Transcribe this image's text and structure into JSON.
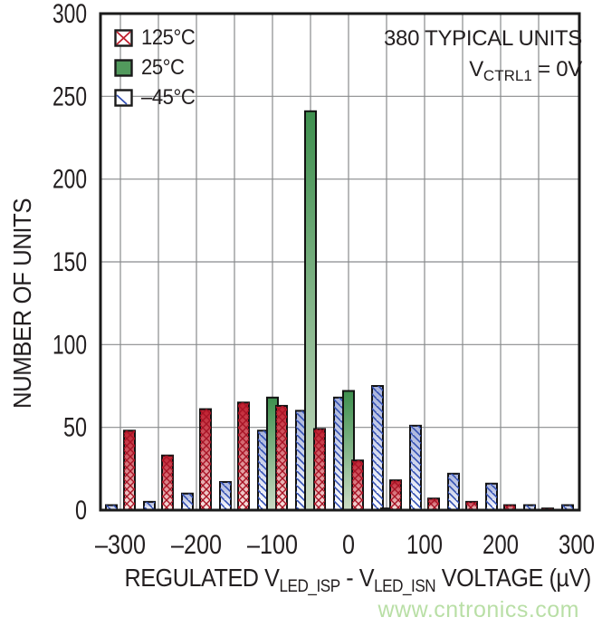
{
  "legend": {
    "items": [
      {
        "label": "125°C",
        "swatch": "red-crosshatch-swatch"
      },
      {
        "label": "25°C",
        "swatch": "green-solid-swatch"
      },
      {
        "label": "–45°C",
        "swatch": "blue-diagonal-swatch"
      }
    ]
  },
  "annotations": {
    "line1": "380 TYPICAL UNITS",
    "line2_parts": {
      "pre": "V",
      "sub": "CTRL1",
      "post": " = 0V"
    }
  },
  "axes": {
    "y_title": "NUMBER OF UNITS",
    "x_title_parts": {
      "p1": "REGULATED V",
      "sub1": "LED_ISP",
      "p2": " - V",
      "sub2": "LED_ISN",
      "p3": " VOLTAGE (µV)"
    },
    "x_ticks": [
      {
        "v": -300,
        "label": "–300",
        "len": 56
      },
      {
        "v": -200,
        "label": "–200",
        "len": 56
      },
      {
        "v": -100,
        "label": "–100",
        "len": 56
      },
      {
        "v": 0,
        "label": "0",
        "len": 14
      },
      {
        "v": 100,
        "label": "100",
        "len": 40
      },
      {
        "v": 200,
        "label": "200",
        "len": 40
      },
      {
        "v": 300,
        "label": "300",
        "len": 40
      }
    ],
    "y_ticks": [
      {
        "v": 0,
        "label": "0",
        "len": 13
      },
      {
        "v": 50,
        "label": "50",
        "len": 26
      },
      {
        "v": 100,
        "label": "100",
        "len": 38
      },
      {
        "v": 150,
        "label": "150",
        "len": 38
      },
      {
        "v": 200,
        "label": "200",
        "len": 38
      },
      {
        "v": 250,
        "label": "250",
        "len": 38
      },
      {
        "v": 300,
        "label": "300",
        "len": 38
      }
    ]
  },
  "watermark": {
    "text": "www.cntronics.com",
    "color": "#b9dfa6"
  },
  "colors": {
    "red": "#be1e2d",
    "green": "#459253",
    "blue": "#3350b4",
    "grid": "#898b8d",
    "frame": "#1a1a1a",
    "text": "#231f20"
  },
  "chart_data": {
    "type": "bar",
    "subtype": "grouped-histogram",
    "title": "380 TYPICAL UNITS",
    "annotation": "V_CTRL1 = 0V",
    "categories": [
      -300,
      -250,
      -200,
      -150,
      -100,
      -50,
      0,
      50,
      100,
      150,
      200,
      250,
      300
    ],
    "bin_width_uV": 50,
    "series": [
      {
        "name": "125°C",
        "color": "#be1e2d",
        "pattern": "crosshatch",
        "values": [
          48,
          33,
          61,
          65,
          63,
          49,
          30,
          18,
          7,
          5,
          3,
          1,
          0
        ]
      },
      {
        "name": "25°C",
        "color": "#459253",
        "pattern": "solid",
        "values": [
          0,
          0,
          0,
          0,
          68,
          241,
          72,
          1,
          0,
          0,
          0,
          0,
          0
        ]
      },
      {
        "name": "–45°C",
        "color": "#3350b4",
        "pattern": "diagonal",
        "values": [
          3,
          5,
          10,
          17,
          48,
          60,
          68,
          75,
          51,
          22,
          16,
          3,
          3
        ]
      }
    ],
    "xlabel": "REGULATED V_LED_ISP - V_LED_ISN VOLTAGE (µV)",
    "ylabel": "NUMBER OF UNITS",
    "xlim": [
      -326,
      304
    ],
    "ylim": [
      0,
      300
    ],
    "x_tick_step": 100,
    "y_tick_step": 50,
    "gridline_step_x_uV": 50,
    "grid": true,
    "legend_position": "top-left"
  }
}
